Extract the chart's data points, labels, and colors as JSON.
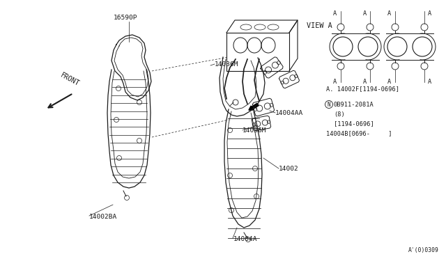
{
  "bg_color": "#ffffff",
  "line_color": "#1a1a1a",
  "fig_w": 6.4,
  "fig_h": 3.72,
  "dpi": 100,
  "labels": {
    "front_text": "FRONT",
    "part_16590P": "16590P",
    "part_14036M_top": "14036M",
    "part_14036M_bot": "14036M",
    "part_14004AA": "14004AA",
    "part_14002": "14002",
    "part_14004A": "14004A",
    "part_14002BA": "14002BA",
    "view_a": "VIEW A",
    "note1": "A. 14002F[1194-0696]",
    "note2": "0B911-2081A",
    "note3": "(8)",
    "note4": "[1194-0696]",
    "note5": "14004B[0696-     ]",
    "diagram_num": "A'(0)0309"
  }
}
